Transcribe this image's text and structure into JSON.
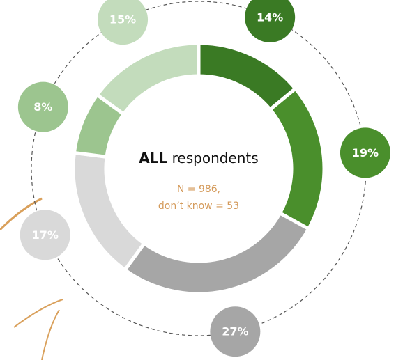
{
  "chart_data": {
    "type": "donut",
    "values": [
      14,
      19,
      27,
      17,
      8,
      15
    ],
    "value_labels": [
      "14%",
      "19%",
      "27%",
      "17%",
      "8%",
      "15%"
    ],
    "colors": [
      "#3a7a24",
      "#4a8f2c",
      "#a6a6a6",
      "#d9d9d9",
      "#9cc58f",
      "#c3dcbc"
    ],
    "center_title_bold": "ALL",
    "center_title": "respondents",
    "center_note": [
      "N = 986,",
      "don’t know = 53"
    ]
  }
}
